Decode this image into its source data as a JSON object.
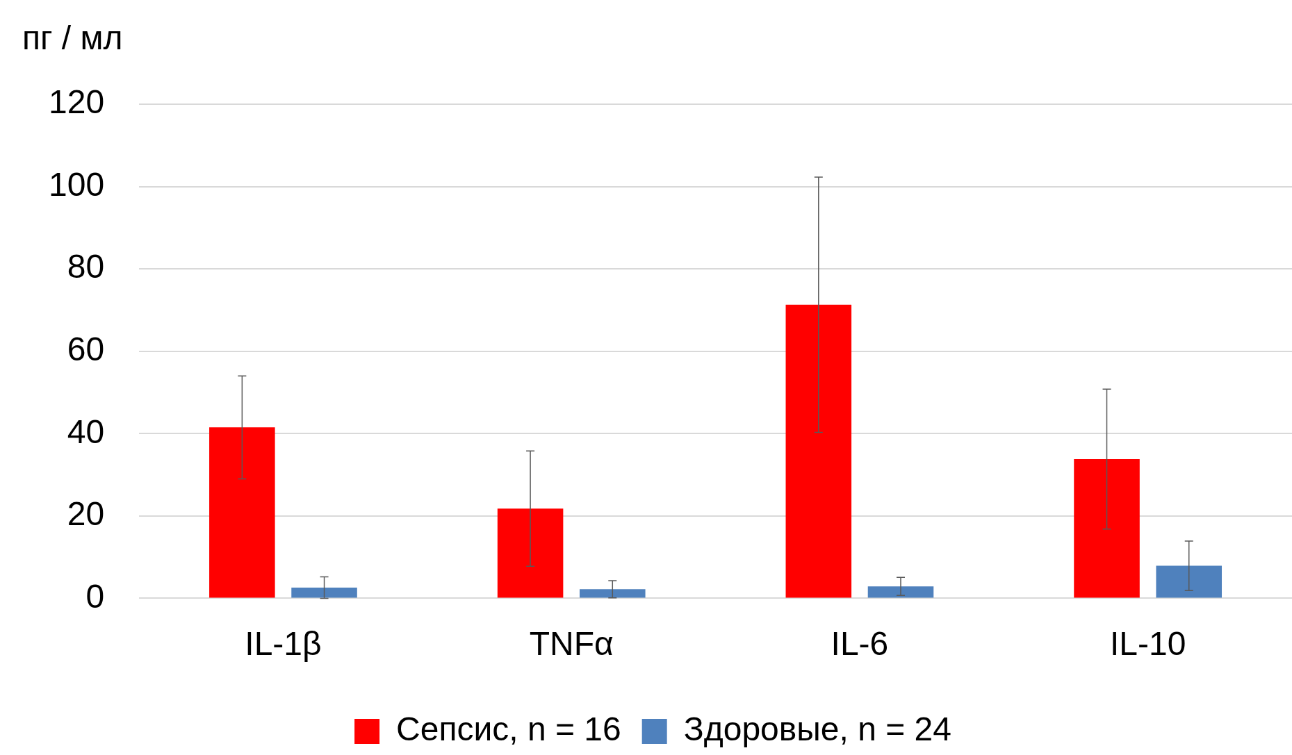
{
  "chart_data": {
    "type": "bar",
    "ylabel": "пг / мл",
    "categories": [
      "IL-1β",
      "TNFα",
      "IL-6",
      "IL-10"
    ],
    "series": [
      {
        "name": "Сепсис, n = 16",
        "color": "#ff0000",
        "values": [
          41.5,
          21.8,
          71.3,
          33.8
        ],
        "errors": [
          12.5,
          14,
          31,
          17
        ]
      },
      {
        "name": "Здоровые, n = 24",
        "color": "#4f81bd",
        "values": [
          2.6,
          2.2,
          2.9,
          7.9
        ],
        "errors": [
          2.6,
          2.1,
          2.2,
          6
        ]
      }
    ],
    "ylim": [
      0,
      120
    ],
    "yticks": [
      0,
      20,
      40,
      60,
      80,
      100,
      120
    ],
    "grid": "y",
    "legend": "bottom"
  }
}
